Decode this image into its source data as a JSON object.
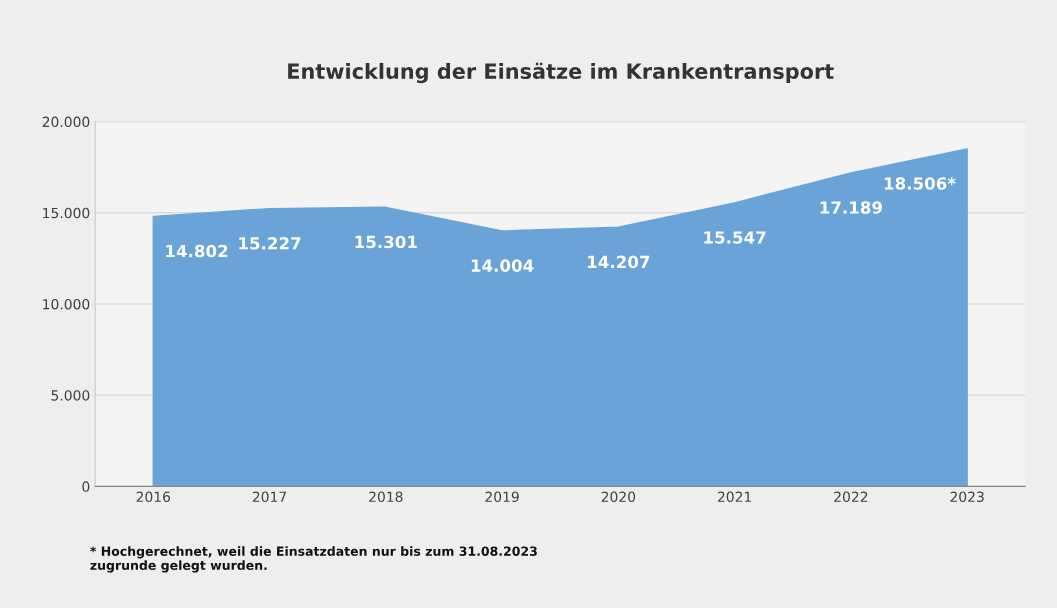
{
  "chart_data": {
    "type": "area",
    "title": "Entwicklung der Einsätze im Krankentransport",
    "categories": [
      "2016",
      "2017",
      "2018",
      "2019",
      "2020",
      "2021",
      "2022",
      "2023"
    ],
    "values": [
      14802,
      15227,
      15301,
      14004,
      14207,
      15547,
      17189,
      18506
    ],
    "value_labels": [
      "14.802",
      "15.227",
      "15.301",
      "14.004",
      "14.207",
      "15.547",
      "17.189",
      "18.506*"
    ],
    "color": "#6aa3d8",
    "ylim": [
      0,
      20000
    ],
    "yticks": [
      0,
      {
        "value": 5000,
        "label": "5.000"
      },
      {
        "value": 10000,
        "label": "10.000"
      },
      {
        "value": 15000,
        "label": "15.000"
      },
      {
        "value": 20000,
        "label": "20.000"
      }
    ],
    "grid": "y",
    "legend": false,
    "annotations": [
      "* Hochgerechnet, weil die Einsatzdaten nur bis zum 31.08.2023\nzugrunde gelegt wurden."
    ]
  }
}
